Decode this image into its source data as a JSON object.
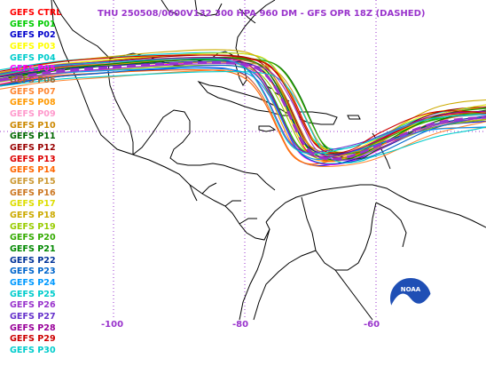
{
  "title": "THU 250508/0600V132  300 HPA 960 DM - GFS OPR 18Z (DASHED)",
  "legend": [
    {
      "label": "GEFS CTRL",
      "color": "#ff0000"
    },
    {
      "label": "GEFS P01",
      "color": "#00cc00"
    },
    {
      "label": "GEFS P02",
      "color": "#0000cc"
    },
    {
      "label": "GEFS P03",
      "color": "#ffff00"
    },
    {
      "label": "GEFS P04",
      "color": "#00cccc"
    },
    {
      "label": "GEFS P05",
      "color": "#ff00ff"
    },
    {
      "label": "GEFS P06",
      "color": "#996633"
    },
    {
      "label": "GEFS P07",
      "color": "#ff8833"
    },
    {
      "label": "GEFS P08",
      "color": "#ff9900"
    },
    {
      "label": "GEFS P09",
      "color": "#ff99cc"
    },
    {
      "label": "GEFS P10",
      "color": "#cc8800"
    },
    {
      "label": "GEFS P11",
      "color": "#006600"
    },
    {
      "label": "GEFS P12",
      "color": "#990000"
    },
    {
      "label": "GEFS P13",
      "color": "#dd0000"
    },
    {
      "label": "GEFS P14",
      "color": "#ff6600"
    },
    {
      "label": "GEFS P15",
      "color": "#cc9933"
    },
    {
      "label": "GEFS P16",
      "color": "#cc7722"
    },
    {
      "label": "GEFS P17",
      "color": "#dddd00"
    },
    {
      "label": "GEFS P18",
      "color": "#ccaa00"
    },
    {
      "label": "GEFS P19",
      "color": "#99cc00"
    },
    {
      "label": "GEFS P20",
      "color": "#33aa00"
    },
    {
      "label": "GEFS P21",
      "color": "#008800"
    },
    {
      "label": "GEFS P22",
      "color": "#003399"
    },
    {
      "label": "GEFS P23",
      "color": "#0066cc"
    },
    {
      "label": "GEFS P24",
      "color": "#0099ff"
    },
    {
      "label": "GEFS P25",
      "color": "#00cccc"
    },
    {
      "label": "GEFS P26",
      "color": "#9933cc"
    },
    {
      "label": "GEFS P27",
      "color": "#6633cc"
    },
    {
      "label": "GEFS P28",
      "color": "#990099"
    },
    {
      "label": "GEFS P29",
      "color": "#cc0000"
    },
    {
      "label": "GEFS P30",
      "color": "#00cccc"
    }
  ],
  "operational_color": "#9933cc",
  "lon_labels": [
    "-100",
    "-80",
    "-60"
  ],
  "logo_text": "NOAA",
  "colors": {
    "grid": "#9933cc",
    "coast": "#000000",
    "logo_blue": "#1f4fb5"
  }
}
